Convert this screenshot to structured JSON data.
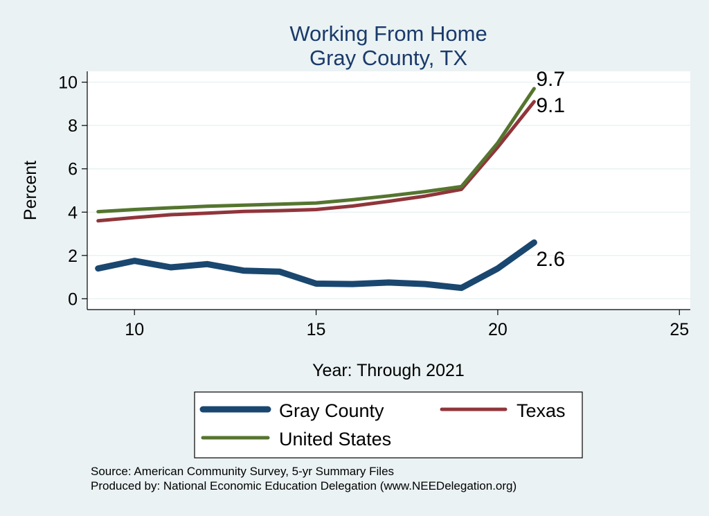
{
  "chart_data": {
    "type": "line",
    "title": [
      "Working From Home",
      "Gray County, TX"
    ],
    "xlabel": "Year: Through 2021",
    "ylabel": "Percent",
    "xlim": [
      8.7,
      25.3
    ],
    "ylim": [
      -0.5,
      10.5
    ],
    "xticks": [
      10,
      15,
      20,
      25
    ],
    "yticks": [
      0,
      2,
      4,
      6,
      8,
      10
    ],
    "grid": true,
    "legend_position": "bottom",
    "x": [
      9,
      10,
      11,
      12,
      13,
      14,
      15,
      16,
      17,
      18,
      19,
      20,
      21
    ],
    "series": [
      {
        "name": "Gray County",
        "color": "#1a476f",
        "values": [
          1.4,
          1.75,
          1.45,
          1.6,
          1.3,
          1.25,
          0.7,
          0.68,
          0.75,
          0.68,
          0.5,
          1.4,
          2.6
        ],
        "end_label": "2.6"
      },
      {
        "name": "Texas",
        "color": "#90353b",
        "values": [
          3.6,
          3.75,
          3.88,
          3.95,
          4.03,
          4.07,
          4.12,
          4.28,
          4.5,
          4.74,
          5.05,
          7.0,
          9.1
        ],
        "end_label": "9.1"
      },
      {
        "name": "United States",
        "color": "#55752f",
        "values": [
          4.02,
          4.12,
          4.2,
          4.27,
          4.32,
          4.37,
          4.42,
          4.57,
          4.75,
          4.95,
          5.18,
          7.2,
          9.7
        ],
        "end_label": "9.7"
      }
    ]
  },
  "notes": {
    "source": "Source: American Community Survey, 5-yr Summary Files",
    "produced": "Produced by: National Economic Education Delegation (www.NEEDelegation.org)"
  }
}
